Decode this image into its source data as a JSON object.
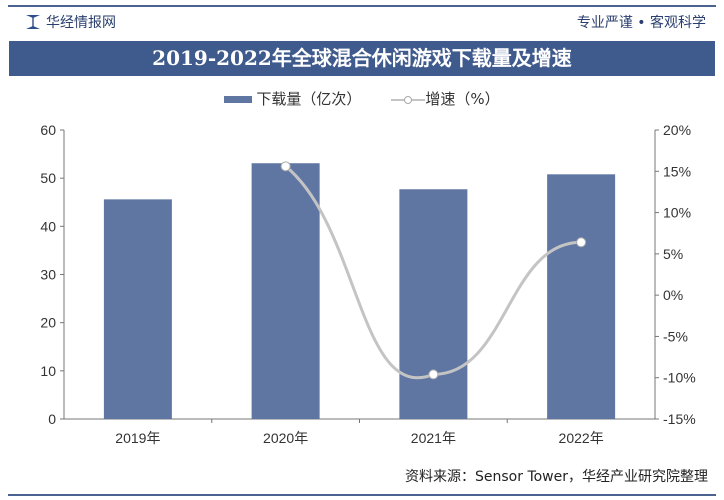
{
  "header": {
    "brand": "华经情报网",
    "slogan": "专业严谨 • 客观科学"
  },
  "title": "2019-2022年全球混合休闲游戏下载量及增速",
  "legend": {
    "bar": "下载量（亿次）",
    "line": "增速（%）"
  },
  "footer": "资料来源：Sensor Tower，华经产业研究院整理",
  "colors": {
    "bar": "#5f76a3",
    "line": "#c4c4c4",
    "title_bg": "#3f5a8c"
  },
  "chart_data": {
    "type": "bar+line",
    "title": "2019-2022年全球混合休闲游戏下载量及增速",
    "categories": [
      "2019年",
      "2020年",
      "2021年",
      "2022年"
    ],
    "series": [
      {
        "name": "下载量（亿次）",
        "type": "bar",
        "axis": "left",
        "values": [
          45.6,
          53.1,
          47.7,
          50.8
        ]
      },
      {
        "name": "增速（%）",
        "type": "line",
        "axis": "right",
        "values": [
          null,
          15.6,
          -9.6,
          6.4
        ]
      }
    ],
    "y_left": {
      "min": 0,
      "max": 60,
      "ticks": [
        "0",
        "10",
        "20",
        "30",
        "40",
        "50",
        "60"
      ]
    },
    "y_right": {
      "min": -15,
      "max": 20,
      "ticks": [
        "-15%",
        "-10%",
        "-5%",
        "0%",
        "5%",
        "10%",
        "15%",
        "20%"
      ]
    },
    "grid": false,
    "legend_position": "top"
  }
}
